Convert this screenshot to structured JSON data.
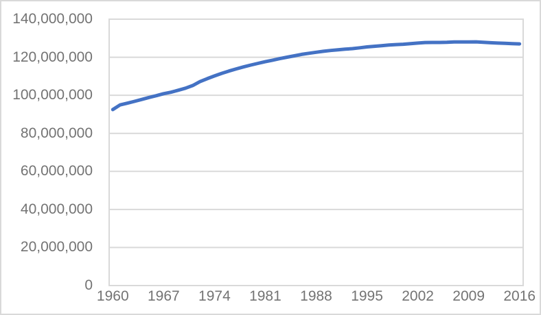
{
  "chart_data": {
    "type": "line",
    "x": [
      1960,
      1961,
      1962,
      1963,
      1964,
      1965,
      1966,
      1967,
      1968,
      1969,
      1970,
      1971,
      1972,
      1973,
      1974,
      1975,
      1976,
      1977,
      1978,
      1979,
      1980,
      1981,
      1982,
      1983,
      1984,
      1985,
      1986,
      1987,
      1988,
      1989,
      1990,
      1991,
      1992,
      1993,
      1994,
      1995,
      1996,
      1997,
      1998,
      1999,
      2000,
      2001,
      2002,
      2003,
      2004,
      2005,
      2006,
      2007,
      2008,
      2009,
      2010,
      2011,
      2012,
      2013,
      2014,
      2015,
      2016
    ],
    "values": [
      92500000,
      94940000,
      95830000,
      96810000,
      97830000,
      98880000,
      99790000,
      100830000,
      101610000,
      102650000,
      103720000,
      105140000,
      107190000,
      108710000,
      110160000,
      111520000,
      112770000,
      113860000,
      114900000,
      115870000,
      116800000,
      117650000,
      118450000,
      119260000,
      120020000,
      120750000,
      121490000,
      122090000,
      122610000,
      123120000,
      123540000,
      123920000,
      124230000,
      124540000,
      124960000,
      125440000,
      125760000,
      126060000,
      126400000,
      126630000,
      126840000,
      127150000,
      127450000,
      127720000,
      127760000,
      127770000,
      127850000,
      128000000,
      128060000,
      128050000,
      128070000,
      127830000,
      127630000,
      127450000,
      127280000,
      127140000,
      127000000
    ],
    "ylim": [
      0,
      140000000
    ],
    "y_ticks": [
      0,
      20000000,
      40000000,
      60000000,
      80000000,
      100000000,
      120000000,
      140000000
    ],
    "y_tick_labels": [
      "0",
      "20,000,000",
      "40,000,000",
      "60,000,000",
      "80,000,000",
      "100,000,000",
      "120,000,000",
      "140,000,000"
    ],
    "x_ticks": [
      1960,
      1967,
      1974,
      1981,
      1988,
      1995,
      2002,
      2009,
      2016
    ],
    "x_tick_labels": [
      "1960",
      "1967",
      "1974",
      "1981",
      "1988",
      "1995",
      "2002",
      "2009",
      "2016"
    ],
    "grid": "horizontal-only",
    "legend": "none",
    "title": "",
    "xlabel": "",
    "ylabel": "",
    "colors": {
      "line": "#4472C4",
      "grid": "#D9D9D9",
      "plot_border": "#D9D9D9",
      "tick_label": "#737373",
      "chart_border": "#D9D9D9",
      "background": "#FFFFFF"
    }
  }
}
